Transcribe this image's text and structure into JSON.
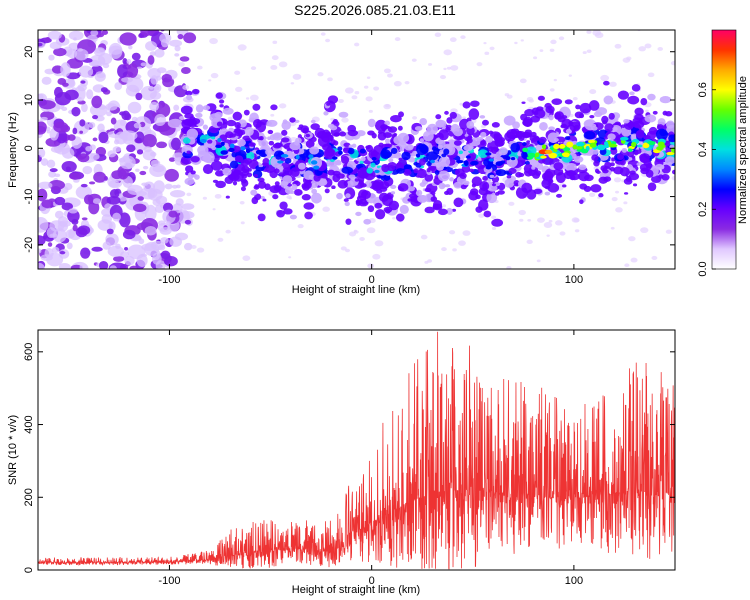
{
  "figure": {
    "title": "S225.2026.085.21.03.E11"
  },
  "chart_data": [
    {
      "type": "heatmap",
      "title": "",
      "xlabel": "Height of straight line (km)",
      "ylabel": "Frequency (Hz)",
      "xlim": [
        -165,
        150
      ],
      "ylim": [
        -25,
        24.5
      ],
      "xticks": [
        -100,
        0,
        100
      ],
      "yticks": [
        -20,
        -10,
        0,
        10,
        20
      ],
      "colorbar": {
        "label": "Normalized spectral amplitude",
        "range": [
          0,
          0.8
        ],
        "ticks": [
          0.0,
          0.2,
          0.4,
          0.6
        ],
        "colormap": [
          "#ffffff",
          "#e0c8ff",
          "#8a2be2",
          "#6600ff",
          "#0000ff",
          "#0088ff",
          "#00e0e0",
          "#00ff66",
          "#66ff00",
          "#ffff00",
          "#ffaa00",
          "#ff3300",
          "#ff0066"
        ]
      },
      "ridge": {
        "x": [
          -165,
          -100,
          -80,
          -60,
          -40,
          -20,
          0,
          20,
          40,
          60,
          80,
          100,
          120,
          150
        ],
        "frequency": [
          0,
          0,
          2,
          -2,
          -3,
          -2,
          -4,
          -3,
          -2,
          -3,
          -1,
          0,
          1,
          0
        ]
      },
      "peak_amplitude_x": 85
    },
    {
      "type": "line",
      "title": "",
      "xlabel": "Height of straight line (km)",
      "ylabel": "SNR (10 * v/v)",
      "xlim": [
        -165,
        150
      ],
      "ylim": [
        0,
        660
      ],
      "xticks": [
        -100,
        0,
        100
      ],
      "yticks": [
        0,
        200,
        400,
        600
      ],
      "series": [
        {
          "color": "#ee3333",
          "envelope_x": [
            -165,
            -100,
            -82,
            -70,
            -50,
            -40,
            -20,
            -10,
            0,
            10,
            20,
            30,
            40,
            50,
            60,
            70,
            80,
            90,
            100,
            110,
            120,
            130,
            140,
            150
          ],
          "baseline": [
            20,
            22,
            28,
            40,
            55,
            60,
            50,
            90,
            130,
            160,
            190,
            210,
            220,
            220,
            215,
            210,
            205,
            200,
            200,
            205,
            210,
            215,
            215,
            210
          ],
          "amplitude": [
            12,
            12,
            20,
            60,
            90,
            60,
            80,
            130,
            180,
            250,
            350,
            380,
            380,
            360,
            300,
            280,
            260,
            240,
            230,
            250,
            280,
            300,
            320,
            280
          ]
        }
      ]
    }
  ]
}
